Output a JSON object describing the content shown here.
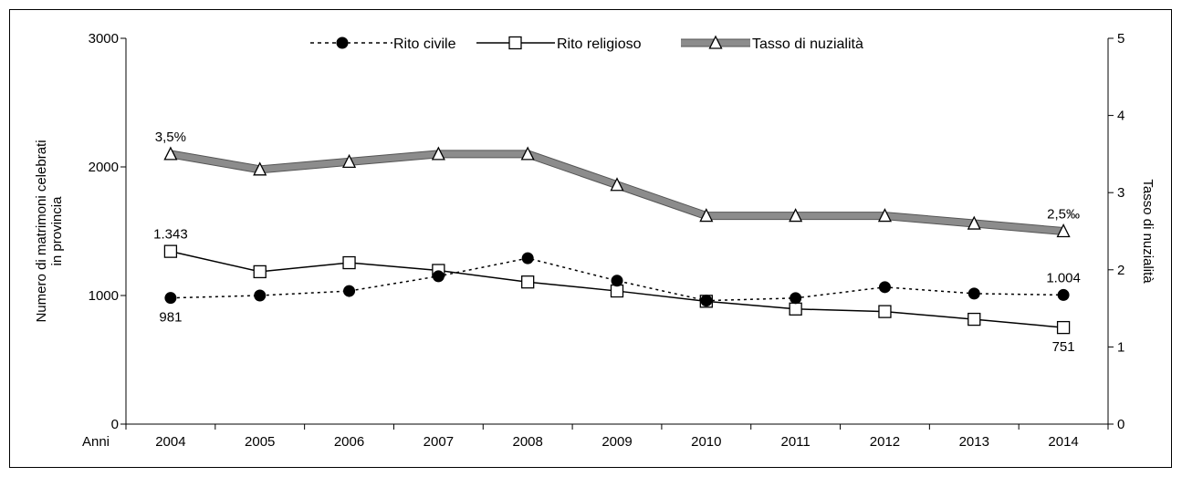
{
  "chart_data": {
    "type": "line",
    "categories": [
      "2004",
      "2005",
      "2006",
      "2007",
      "2008",
      "2009",
      "2010",
      "2011",
      "2012",
      "2013",
      "2014"
    ],
    "x_axis_prefix_label": "Anni",
    "ylabel_left": "Numero di matrimoni  celebrati\nin provincia",
    "ylabel_right": "Tasso di nuzialità",
    "ylim_left": [
      0,
      3000
    ],
    "yticks_left": [
      "0",
      "1000",
      "2000",
      "3000"
    ],
    "ylim_right": [
      0,
      5
    ],
    "yticks_right": [
      "0",
      "1",
      "2",
      "3",
      "4",
      "5"
    ],
    "grid": false,
    "legend_position": "top-center",
    "series": [
      {
        "name": "Rito civile",
        "axis": "left",
        "style": "dotted-filled-circle",
        "color": "#000000",
        "values": [
          981,
          1000,
          1035,
          1150,
          1290,
          1115,
          960,
          980,
          1065,
          1015,
          1004
        ]
      },
      {
        "name": "Rito religioso",
        "axis": "left",
        "style": "solid-open-square",
        "color": "#000000",
        "values": [
          1343,
          1185,
          1255,
          1195,
          1105,
          1035,
          955,
          895,
          875,
          815,
          751
        ]
      },
      {
        "name": "Tasso di nuzialità",
        "axis": "right",
        "style": "thick-gray-open-triangle",
        "color": "#8c8c8c",
        "values": [
          3.5,
          3.3,
          3.4,
          3.5,
          3.5,
          3.1,
          2.7,
          2.7,
          2.7,
          2.6,
          2.5
        ]
      }
    ],
    "annotations": [
      {
        "series": 0,
        "index": 0,
        "text": "981",
        "place": "below"
      },
      {
        "series": 0,
        "index": 10,
        "text": "1.004",
        "place": "above"
      },
      {
        "series": 1,
        "index": 0,
        "text": "1.343",
        "place": "above"
      },
      {
        "series": 1,
        "index": 10,
        "text": "751",
        "place": "below"
      },
      {
        "series": 2,
        "index": 0,
        "text": "3,5%",
        "place": "above"
      },
      {
        "series": 2,
        "index": 10,
        "text": "2,5‰",
        "place": "above"
      }
    ]
  }
}
